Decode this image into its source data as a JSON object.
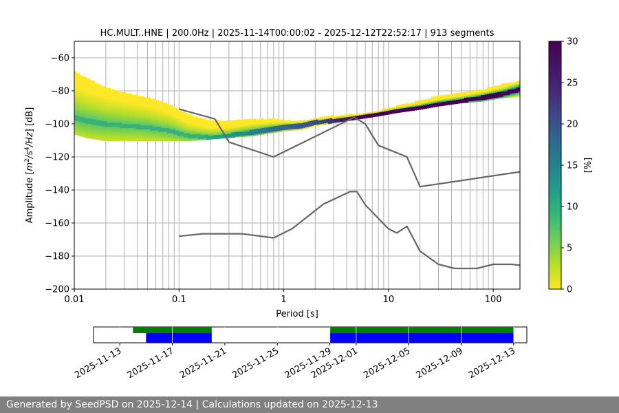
{
  "chart_data": [
    {
      "type": "heatmap",
      "title": "HC.MULT..HNE | 200.0Hz | 2025-11-14T00:00:02 - 2025-12-12T22:52:17 | 913 segments",
      "xlabel": "Period [s]",
      "ylabel": "Amplitude [m²/s⁴/Hz] [dB]",
      "x_scale": "log",
      "xlim": [
        0.01,
        180
      ],
      "ylim": [
        -200,
        -50
      ],
      "x_ticks": [
        0.01,
        0.1,
        1,
        10,
        100
      ],
      "x_tick_labels": [
        "0.01",
        "0.1",
        "1",
        "10",
        "100"
      ],
      "y_ticks": [
        -60,
        -80,
        -100,
        -120,
        -140,
        -160,
        -180,
        -200
      ],
      "y_tick_labels": [
        "−60",
        "−80",
        "−100",
        "−120",
        "−140",
        "−160",
        "−180",
        "−200"
      ],
      "grid": true,
      "colorbar": {
        "label": "[%]",
        "range": [
          0,
          30
        ],
        "ticks": [
          0,
          5,
          10,
          15,
          20,
          25,
          30
        ],
        "tick_labels": [
          "0",
          "5",
          "10",
          "15",
          "20",
          "25",
          "30"
        ],
        "colormap": "viridis",
        "colors": [
          "#fde725",
          "#5ec962",
          "#21918c",
          "#3b528b",
          "#440154"
        ]
      },
      "density_band": {
        "period": [
          0.01,
          0.013,
          0.02,
          0.03,
          0.05,
          0.08,
          0.12,
          0.2,
          0.3,
          0.5,
          0.8,
          1.0,
          1.5,
          2,
          3,
          5,
          8,
          12,
          20,
          30,
          50,
          80,
          120,
          180
        ],
        "upper": [
          -68,
          -72,
          -78,
          -81,
          -84,
          -88,
          -94,
          -98,
          -98,
          -97,
          -97,
          -98,
          -98,
          -97,
          -95,
          -94,
          -92,
          -89,
          -86,
          -83,
          -81,
          -79,
          -76,
          -74
        ],
        "lower": [
          -106,
          -108,
          -110,
          -110,
          -110,
          -110,
          -110,
          -109,
          -108,
          -107,
          -105,
          -104,
          -103,
          -101,
          -99,
          -97,
          -95,
          -93,
          -91,
          -89,
          -87,
          -86,
          -84,
          -83
        ],
        "mode": [
          -96,
          -98,
          -100,
          -101,
          -102,
          -104,
          -107,
          -108,
          -107,
          -105,
          -103,
          -102,
          -101,
          -99,
          -98,
          -96,
          -94,
          -92,
          -90,
          -88,
          -86,
          -84,
          -82,
          -79
        ]
      },
      "series": [
        {
          "color": "#666666",
          "x": [
            0.1,
            0.22,
            0.3,
            0.8,
            4.7,
            6,
            8,
            15,
            20,
            180
          ],
          "y": [
            -91,
            -97,
            -111,
            -120,
            -96,
            -100,
            -113,
            -120,
            -138,
            -129
          ]
        },
        {
          "color": "#666666",
          "x": [
            0.1,
            0.17,
            0.4,
            0.8,
            1.2,
            2.4,
            4.3,
            5,
            6,
            10,
            12,
            15,
            20,
            30,
            43,
            70,
            100,
            150,
            180
          ],
          "y": [
            -168,
            -166.5,
            -166.5,
            -169,
            -163.5,
            -148.5,
            -141,
            -141,
            -149,
            -163.5,
            -166,
            -162,
            -177,
            -185,
            -187.5,
            -187.5,
            -185,
            -185,
            -185.5
          ]
        }
      ]
    },
    {
      "type": "timeline",
      "x_tick_labels": [
        "2025-11-13",
        "2025-11-17",
        "2025-11-21",
        "2025-11-25",
        "2025-11-29",
        "2025-12-01",
        "2025-12-05",
        "2025-12-09",
        "2025-12-13"
      ],
      "green_segments": [
        [
          "2025-11-14",
          "2025-11-20"
        ],
        [
          "2025-11-29",
          "2025-12-13"
        ]
      ],
      "blue_segments": [
        [
          "2025-11-15",
          "2025-11-20"
        ],
        [
          "2025-11-29",
          "2025-12-13"
        ]
      ]
    }
  ],
  "footer": {
    "text": "Generated by SeedPSD on 2025-12-14 | Calculations updated on 2025-12-13"
  }
}
